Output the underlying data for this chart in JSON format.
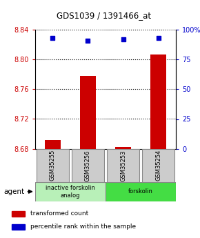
{
  "title": "GDS1039 / 1391466_at",
  "samples": [
    "GSM35255",
    "GSM35256",
    "GSM35253",
    "GSM35254"
  ],
  "red_values": [
    8.692,
    8.778,
    8.682,
    8.807
  ],
  "blue_pct": [
    93,
    91,
    92,
    93
  ],
  "ylim_left": [
    8.68,
    8.84
  ],
  "ylim_right": [
    0,
    100
  ],
  "yticks_left": [
    8.68,
    8.72,
    8.76,
    8.8,
    8.84
  ],
  "yticks_right": [
    0,
    25,
    50,
    75,
    100
  ],
  "ytick_labels_right": [
    "0",
    "25",
    "50",
    "75",
    "100%"
  ],
  "groups": [
    {
      "label": "inactive forskolin\nanalog",
      "color": "#b8f0b8",
      "start": 0,
      "end": 2
    },
    {
      "label": "forskolin",
      "color": "#44dd44",
      "start": 2,
      "end": 4
    }
  ],
  "legend_red": "transformed count",
  "legend_blue": "percentile rank within the sample",
  "agent_label": "agent",
  "bar_width": 0.45,
  "bar_color": "#cc0000",
  "dot_color": "#0000cc",
  "title_color": "#000000",
  "left_tick_color": "#cc0000",
  "right_tick_color": "#0000cc",
  "grid_color": "#000000"
}
